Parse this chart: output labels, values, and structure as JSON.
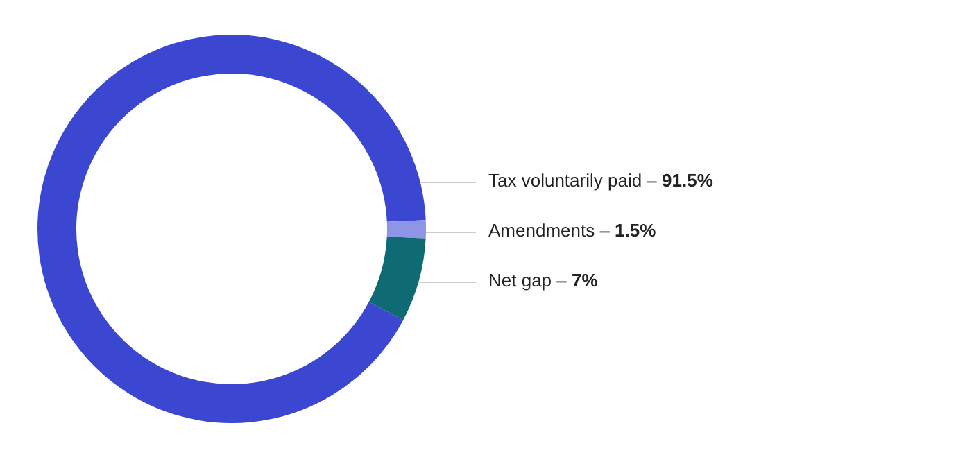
{
  "chart_data": {
    "type": "donut",
    "categories": [
      "Tax voluntarily paid –",
      "Amendments –",
      "Net gap –"
    ],
    "values": [
      91.5,
      1.5,
      7
    ],
    "colors": [
      "#3b46d1",
      "#8e94e6",
      "#0e6b73"
    ],
    "value_labels": [
      "91.5%",
      "1.5%",
      "7%"
    ],
    "legend": false
  }
}
